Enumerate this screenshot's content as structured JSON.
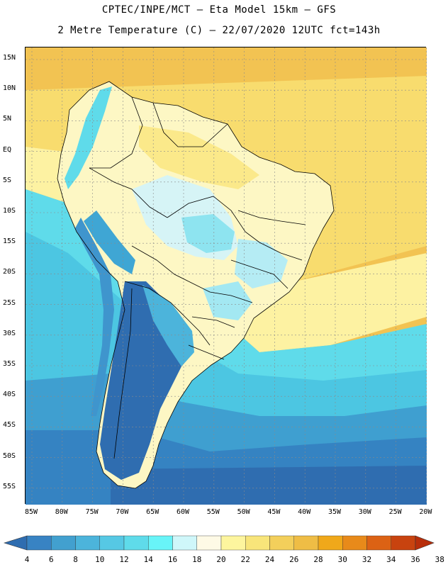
{
  "header": {
    "title_line1": "CPTEC/INPE/MCT –  Eta Model 15km – GFS",
    "title_line2": "2 Metre Temperature (C) – 22/07/2020 12UTC fct=143h"
  },
  "map": {
    "lat_labels": [
      "15N",
      "10N",
      "5N",
      "EQ",
      "5S",
      "10S",
      "15S",
      "20S",
      "25S",
      "30S",
      "35S",
      "40S",
      "45S",
      "50S",
      "55S"
    ],
    "lon_labels": [
      "85W",
      "80W",
      "75W",
      "70W",
      "65W",
      "60W",
      "55W",
      "50W",
      "45W",
      "40W",
      "35W",
      "30W",
      "25W",
      "20W"
    ]
  },
  "colorbar": {
    "labels": [
      "4",
      "6",
      "8",
      "10",
      "12",
      "14",
      "16",
      "18",
      "20",
      "22",
      "24",
      "26",
      "28",
      "30",
      "32",
      "34",
      "36",
      "38"
    ],
    "colors": [
      "#2f6db0",
      "#3883c3",
      "#42a0cf",
      "#4cb4db",
      "#56c8e4",
      "#5fdbea",
      "#68f4f8",
      "#cff7fa",
      "#fefae6",
      "#fdf59e",
      "#f8e57a",
      "#f3cf5b",
      "#efbd45",
      "#f0a81a",
      "#e88a1a",
      "#dc6214",
      "#c8430f",
      "#b82e0a"
    ]
  }
}
